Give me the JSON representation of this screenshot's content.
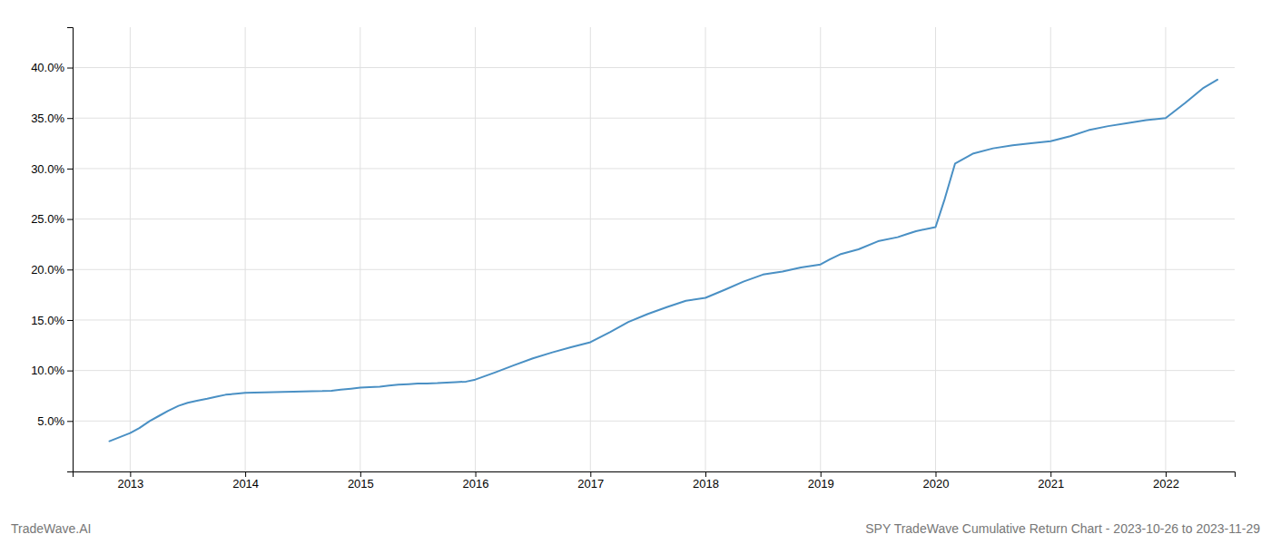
{
  "chart_data": {
    "type": "line",
    "annotations": [
      "TradeWave.AI",
      "SPY TradeWave Cumulative Return Chart - 2023-10-26 to 2023-11-29"
    ],
    "color": "#4a90c4",
    "grid": true,
    "x": [
      2012.82,
      2013.0,
      2013.08,
      2013.17,
      2013.25,
      2013.33,
      2013.42,
      2013.5,
      2013.58,
      2013.67,
      2013.75,
      2013.83,
      2013.92,
      2014.0,
      2014.08,
      2014.17,
      2014.25,
      2014.33,
      2014.42,
      2014.5,
      2014.58,
      2014.67,
      2014.75,
      2014.83,
      2014.92,
      2015.0,
      2015.08,
      2015.17,
      2015.25,
      2015.33,
      2015.42,
      2015.5,
      2015.58,
      2015.67,
      2015.75,
      2015.83,
      2015.92,
      2016.0,
      2016.17,
      2016.33,
      2016.5,
      2016.67,
      2016.83,
      2017.0,
      2017.17,
      2017.33,
      2017.5,
      2017.67,
      2017.83,
      2018.0,
      2018.17,
      2018.33,
      2018.5,
      2018.67,
      2018.83,
      2019.0,
      2019.08,
      2019.17,
      2019.33,
      2019.5,
      2019.67,
      2019.75,
      2019.83,
      2020.0,
      2020.08,
      2020.17,
      2020.33,
      2020.5,
      2020.67,
      2020.83,
      2021.0,
      2021.17,
      2021.33,
      2021.5,
      2021.67,
      2021.83,
      2022.0,
      2022.17,
      2022.33,
      2022.45
    ],
    "values": [
      3.0,
      3.8,
      4.3,
      5.0,
      5.5,
      6.0,
      6.5,
      6.8,
      7.0,
      7.2,
      7.4,
      7.6,
      7.7,
      7.8,
      7.82,
      7.84,
      7.86,
      7.88,
      7.9,
      7.92,
      7.94,
      7.96,
      8.0,
      8.1,
      8.2,
      8.3,
      8.35,
      8.4,
      8.5,
      8.6,
      8.65,
      8.7,
      8.72,
      8.75,
      8.8,
      8.85,
      8.9,
      9.1,
      9.8,
      10.5,
      11.2,
      11.8,
      12.3,
      12.8,
      13.8,
      14.8,
      15.6,
      16.3,
      16.9,
      17.2,
      18.0,
      18.8,
      19.5,
      19.8,
      20.2,
      20.5,
      21.0,
      21.5,
      22.0,
      22.8,
      23.2,
      23.5,
      23.8,
      24.2,
      27.0,
      30.5,
      31.5,
      32.0,
      32.3,
      32.5,
      32.7,
      33.2,
      33.8,
      34.2,
      34.5,
      34.8,
      35.0,
      36.5,
      38.0,
      38.8
    ],
    "xlim": [
      2012.5,
      2022.6
    ],
    "xticks": [
      2013,
      2014,
      2015,
      2016,
      2017,
      2018,
      2019,
      2020,
      2021,
      2022
    ],
    "ylim": [
      0.0,
      44.0
    ],
    "yticks": [
      {
        "value": 5.0,
        "label": "5.0%"
      },
      {
        "value": 10.0,
        "label": "10.0%"
      },
      {
        "value": 15.0,
        "label": "15.0%"
      },
      {
        "value": 20.0,
        "label": "20.0%"
      },
      {
        "value": 25.0,
        "label": "25.0%"
      },
      {
        "value": 30.0,
        "label": "30.0%"
      },
      {
        "value": 35.0,
        "label": "35.0%"
      },
      {
        "value": 40.0,
        "label": "40.0%"
      }
    ]
  }
}
